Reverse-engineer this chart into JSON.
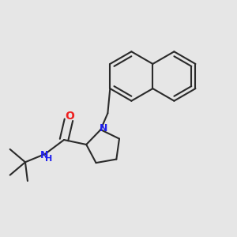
{
  "bg_color": "#e6e6e6",
  "bond_color": "#2a2a2a",
  "N_color": "#2020ee",
  "O_color": "#ee2020",
  "lw": 1.5,
  "fig_w": 3.0,
  "fig_h": 3.0,
  "dpi": 100,
  "xlim": [
    0.0,
    1.0
  ],
  "ylim": [
    0.05,
    1.05
  ]
}
